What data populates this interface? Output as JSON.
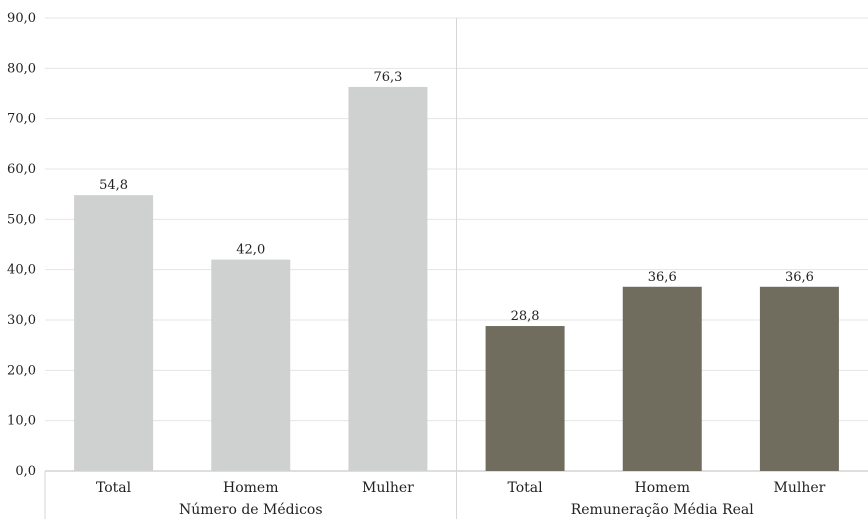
{
  "chart_data": {
    "type": "bar",
    "ylim": [
      0,
      90
    ],
    "yticks": [
      "0,0",
      "10,0",
      "20,0",
      "30,0",
      "40,0",
      "50,0",
      "60,0",
      "70,0",
      "80,0",
      "90,0"
    ],
    "grid": true,
    "groups": [
      {
        "label": "Número de Médicos",
        "color": "#cfd1d0",
        "categories": [
          "Total",
          "Homem",
          "Mulher"
        ],
        "values": [
          54.8,
          42.0,
          76.3
        ],
        "value_labels": [
          "54,8",
          "42,0",
          "76,3"
        ]
      },
      {
        "label": "Remuneração Média Real",
        "color": "#706d5e",
        "categories": [
          "Total",
          "Homem",
          "Mulher"
        ],
        "values": [
          28.8,
          36.6,
          36.6
        ],
        "value_labels": [
          "28,8",
          "36,6",
          "36,6"
        ]
      }
    ]
  }
}
